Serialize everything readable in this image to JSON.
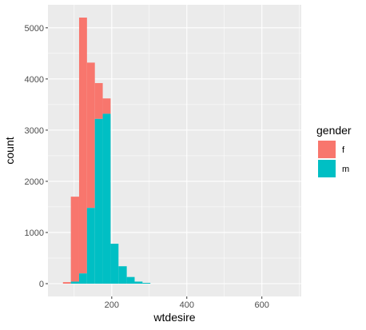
{
  "chart_data": {
    "type": "bar",
    "subtype": "stacked-histogram",
    "title": "",
    "xlabel": "wtdesire",
    "ylabel": "count",
    "xlim": [
      30,
      705
    ],
    "ylim": [
      -250,
      5450
    ],
    "x_ticks": [
      200,
      400,
      600
    ],
    "x_tick_labels": [
      "200",
      "400",
      "600"
    ],
    "y_ticks": [
      0,
      1000,
      2000,
      3000,
      4000,
      5000
    ],
    "y_tick_labels": [
      "0",
      "1000",
      "2000",
      "3000",
      "4000",
      "5000"
    ],
    "grid": true,
    "legend": {
      "title": "gender",
      "position": "right"
    },
    "bins": [
      {
        "x0": 70,
        "x1": 91,
        "m": 0,
        "total": 30
      },
      {
        "x0": 91,
        "x1": 113,
        "m": 40,
        "total": 1700
      },
      {
        "x0": 113,
        "x1": 134,
        "m": 200,
        "total": 5200
      },
      {
        "x0": 134,
        "x1": 155,
        "m": 1480,
        "total": 4320
      },
      {
        "x0": 155,
        "x1": 176,
        "m": 3220,
        "total": 3920
      },
      {
        "x0": 176,
        "x1": 197,
        "m": 3320,
        "total": 3620
      },
      {
        "x0": 197,
        "x1": 218,
        "m": 780,
        "total": 780
      },
      {
        "x0": 218,
        "x1": 240,
        "m": 340,
        "total": 340
      },
      {
        "x0": 240,
        "x1": 261,
        "m": 130,
        "total": 130
      },
      {
        "x0": 261,
        "x1": 282,
        "m": 40,
        "total": 40
      },
      {
        "x0": 282,
        "x1": 303,
        "m": 15,
        "total": 15
      }
    ],
    "series": [
      {
        "name": "f",
        "color": "#F8766D"
      },
      {
        "name": "m",
        "color": "#00BFC4"
      }
    ]
  },
  "colors": {
    "panel_bg": "#EBEBEB",
    "grid_major": "#FFFFFF",
    "female": "#F8766D",
    "male": "#00BFC4"
  }
}
